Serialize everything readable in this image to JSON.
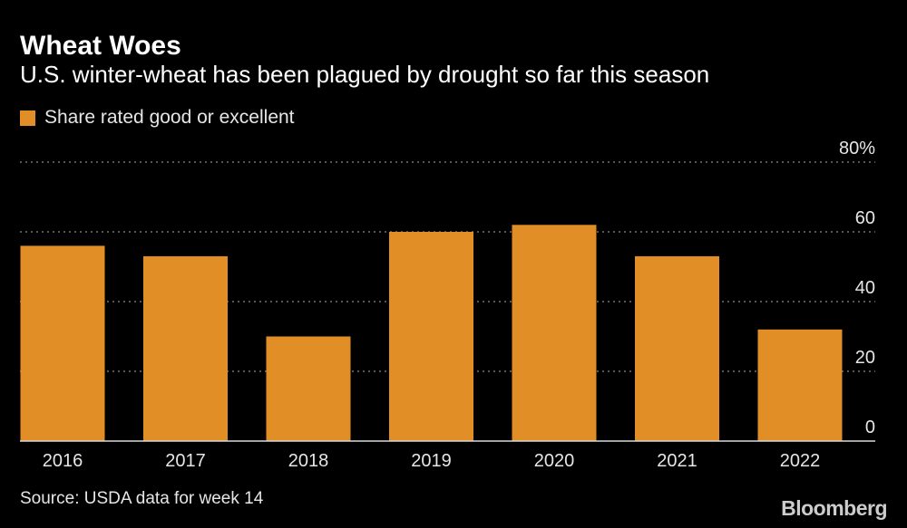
{
  "header": {
    "title": "Wheat Woes",
    "subtitle": "U.S. winter-wheat has been plagued by drought so far this season"
  },
  "legend": {
    "label": "Share rated good or excellent"
  },
  "footer": {
    "source": "Source: USDA data for week 14",
    "brand": "Bloomberg"
  },
  "colors": {
    "bar": "#E08E25",
    "background": "#000000",
    "grid": "#8a8a8a",
    "text": "#ffffff"
  },
  "chart_data": {
    "type": "bar",
    "title": "Wheat Woes",
    "subtitle": "U.S. winter-wheat has been plagued by drought so far this season",
    "categories": [
      "2016",
      "2017",
      "2018",
      "2019",
      "2020",
      "2021",
      "2022"
    ],
    "series": [
      {
        "name": "Share rated good or excellent",
        "values": [
          56,
          53,
          30,
          60,
          62,
          53,
          32
        ]
      }
    ],
    "xlabel": "",
    "ylabel": "",
    "ylim": [
      0,
      80
    ],
    "yticks": [
      0,
      20,
      40,
      60,
      80
    ],
    "ytick_labels": [
      "0",
      "20",
      "40",
      "60",
      "80%"
    ],
    "grid": true,
    "legend_position": "top-left"
  }
}
